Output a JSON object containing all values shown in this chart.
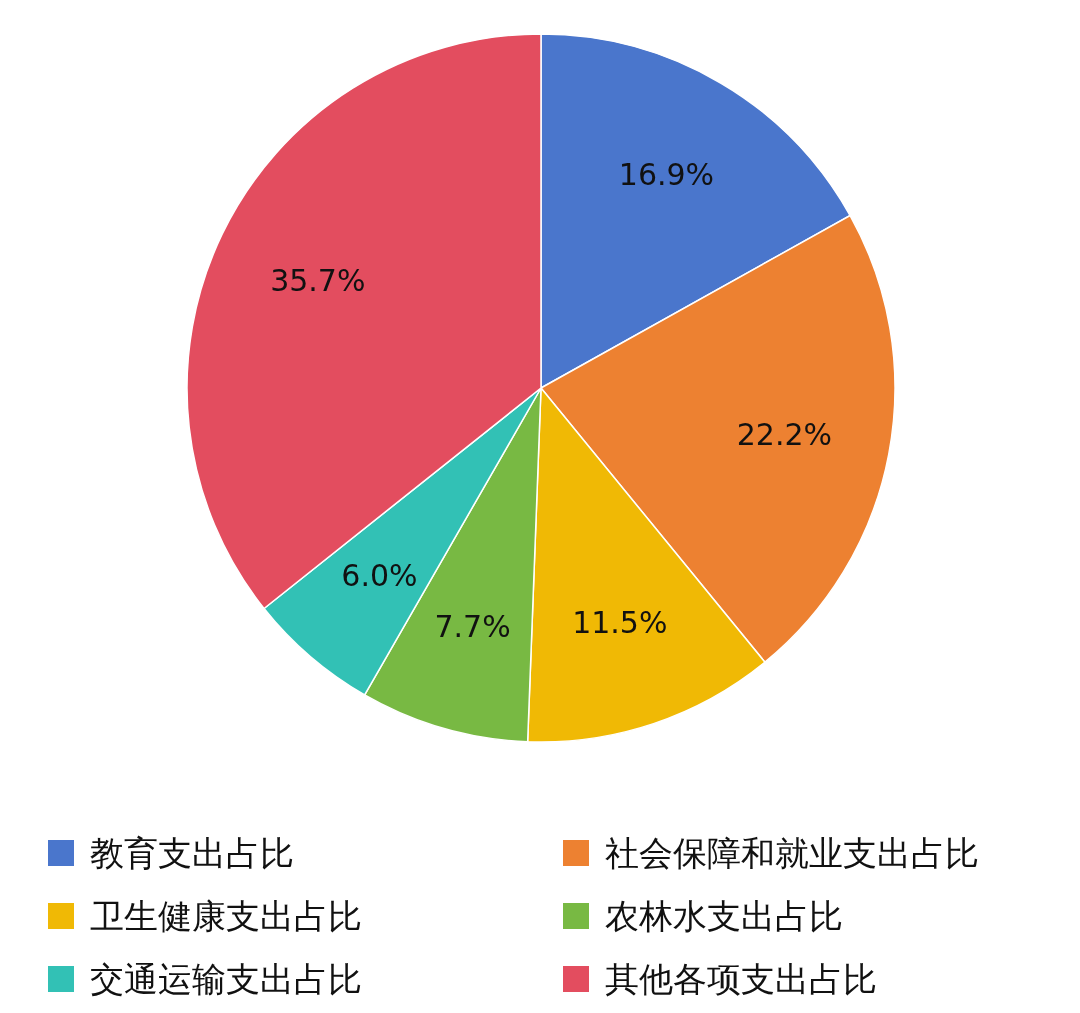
{
  "chart_data": {
    "type": "pie",
    "categories": [
      "教育支出占比",
      "社会保障和就业支出占比",
      "卫生健康支出占比",
      "农林水支出占比",
      "交通运输支出占比",
      "其他各项支出占比"
    ],
    "values": [
      16.9,
      22.2,
      11.5,
      7.7,
      6.0,
      35.7
    ],
    "value_labels": [
      "16.9%",
      "22.2%",
      "11.5%",
      "7.7%",
      "6.0%",
      "35.7%"
    ],
    "colors": [
      "#4a76cc",
      "#ed8131",
      "#f0b905",
      "#78b943",
      "#32c1b5",
      "#e34d5f"
    ],
    "legend": "bottom"
  }
}
